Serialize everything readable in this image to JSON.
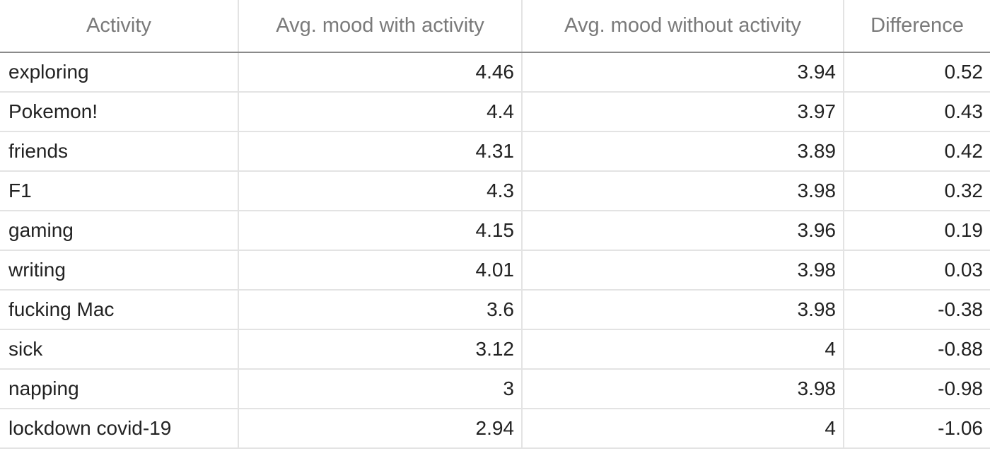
{
  "chart_data": {
    "type": "table",
    "columns": [
      "Activity",
      "Avg. mood with activity",
      "Avg. mood without activity",
      "Difference"
    ],
    "rows": [
      [
        "exploring",
        "4.46",
        "3.94",
        "0.52"
      ],
      [
        "Pokemon!",
        "4.4",
        "3.97",
        "0.43"
      ],
      [
        "friends",
        "4.31",
        "3.89",
        "0.42"
      ],
      [
        "F1",
        "4.3",
        "3.98",
        "0.32"
      ],
      [
        "gaming",
        "4.15",
        "3.96",
        "0.19"
      ],
      [
        "writing",
        "4.01",
        "3.98",
        "0.03"
      ],
      [
        "fucking Mac",
        "3.6",
        "3.98",
        "-0.38"
      ],
      [
        "sick",
        "3.12",
        "4",
        "-0.88"
      ],
      [
        "napping",
        "3",
        "3.98",
        "-0.98"
      ],
      [
        "lockdown covid-19",
        "2.94",
        "4",
        "-1.06"
      ]
    ]
  }
}
